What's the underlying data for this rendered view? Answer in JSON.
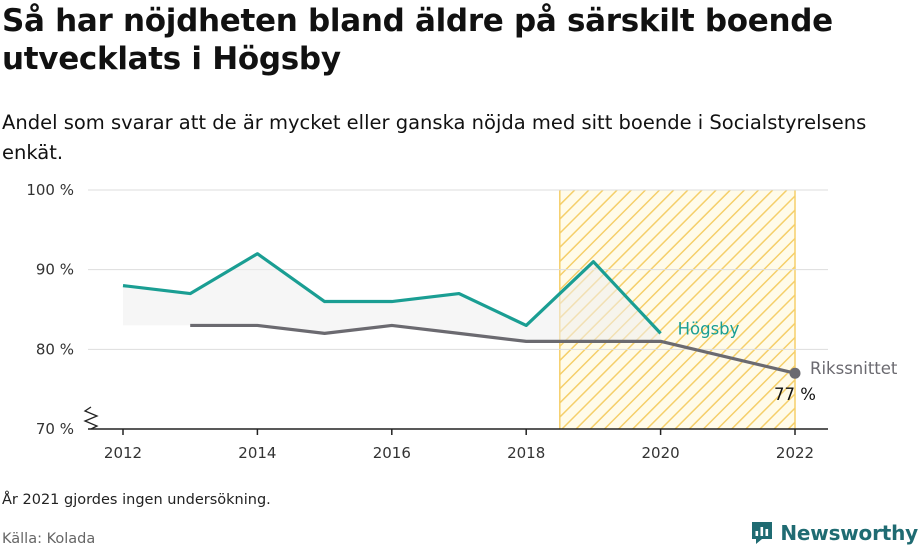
{
  "title": "Så har nöjdheten bland äldre på särskilt boende utvecklats i Högsby",
  "subtitle": "Andel som svarar att de är mycket eller ganska nöjda med sitt boende i Socialstyrelsens enkät.",
  "note": "År 2021 gjordes ingen undersökning.",
  "source": "Källa: Kolada",
  "brand": "Newsworthy",
  "colors": {
    "hogsby": "#1a9e93",
    "riket": "#6b6a70",
    "highlight": "#f5c84c",
    "grid": "#dddddd"
  },
  "chart_data": {
    "type": "line",
    "ylim": [
      70,
      100
    ],
    "xlim": [
      2011.5,
      2022.5
    ],
    "yticks": [
      70,
      80,
      90,
      100
    ],
    "ytick_labels": [
      "70 %",
      "80 %",
      "90 %",
      "100 %"
    ],
    "xticks": [
      2012,
      2014,
      2016,
      2018,
      2020,
      2022
    ],
    "xtick_labels": [
      "2012",
      "2014",
      "2016",
      "2018",
      "2020",
      "2022"
    ],
    "highlight_range": [
      2018.5,
      2022
    ],
    "series": [
      {
        "name": "Högsby",
        "x": [
          2012,
          2013,
          2014,
          2015,
          2016,
          2017,
          2018,
          2019,
          2020
        ],
        "values": [
          88,
          87,
          92,
          86,
          86,
          87,
          83,
          91,
          82
        ]
      },
      {
        "name": "Rikssnittet",
        "x": [
          2013,
          2014,
          2015,
          2016,
          2017,
          2018,
          2019,
          2020,
          2022
        ],
        "values": [
          83,
          83,
          82,
          83,
          82,
          81,
          81,
          81,
          77
        ]
      }
    ],
    "end_value_label": "77 %"
  }
}
